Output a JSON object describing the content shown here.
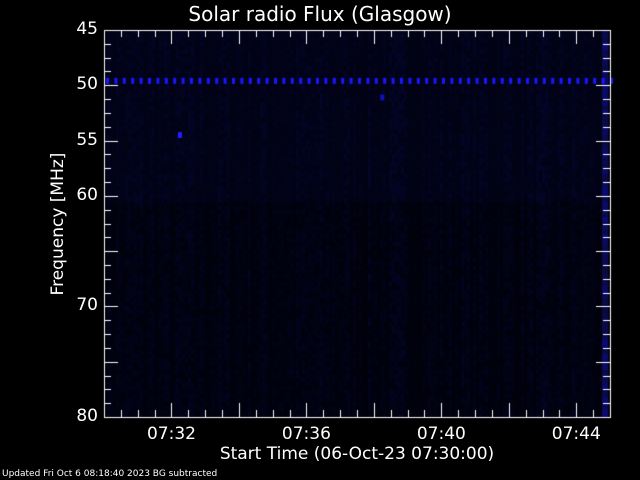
{
  "chart_data": {
    "type": "heatmap",
    "title": "Solar radio Flux (Glasgow)",
    "xlabel": "Start Time (06-Oct-23 07:30:00)",
    "ylabel": "Frequency [MHz]",
    "x_range": [
      "07:30",
      "07:45"
    ],
    "x_ticks": [
      "07:32",
      "07:36",
      "07:40",
      "07:44"
    ],
    "ylim": [
      45,
      80
    ],
    "y_inverted": true,
    "y_ticks": [
      45,
      50,
      55,
      60,
      70,
      80
    ],
    "colormap": [
      "#000000",
      "#0a0a3a",
      "#0000ff"
    ],
    "features": [
      {
        "type": "dotted-line",
        "frequency_mhz": 49.6,
        "from": "07:30",
        "to": "07:45",
        "color": "#1818ff"
      },
      {
        "type": "spot",
        "time": "07:32:15",
        "frequency_mhz": 54.5,
        "color": "#2020ff"
      },
      {
        "type": "spot",
        "time": "07:38:15",
        "frequency_mhz": 51.1,
        "color": "#1010c0"
      }
    ]
  },
  "footer": "Updated Fri Oct  6 08:18:40 2023    BG subtracted"
}
